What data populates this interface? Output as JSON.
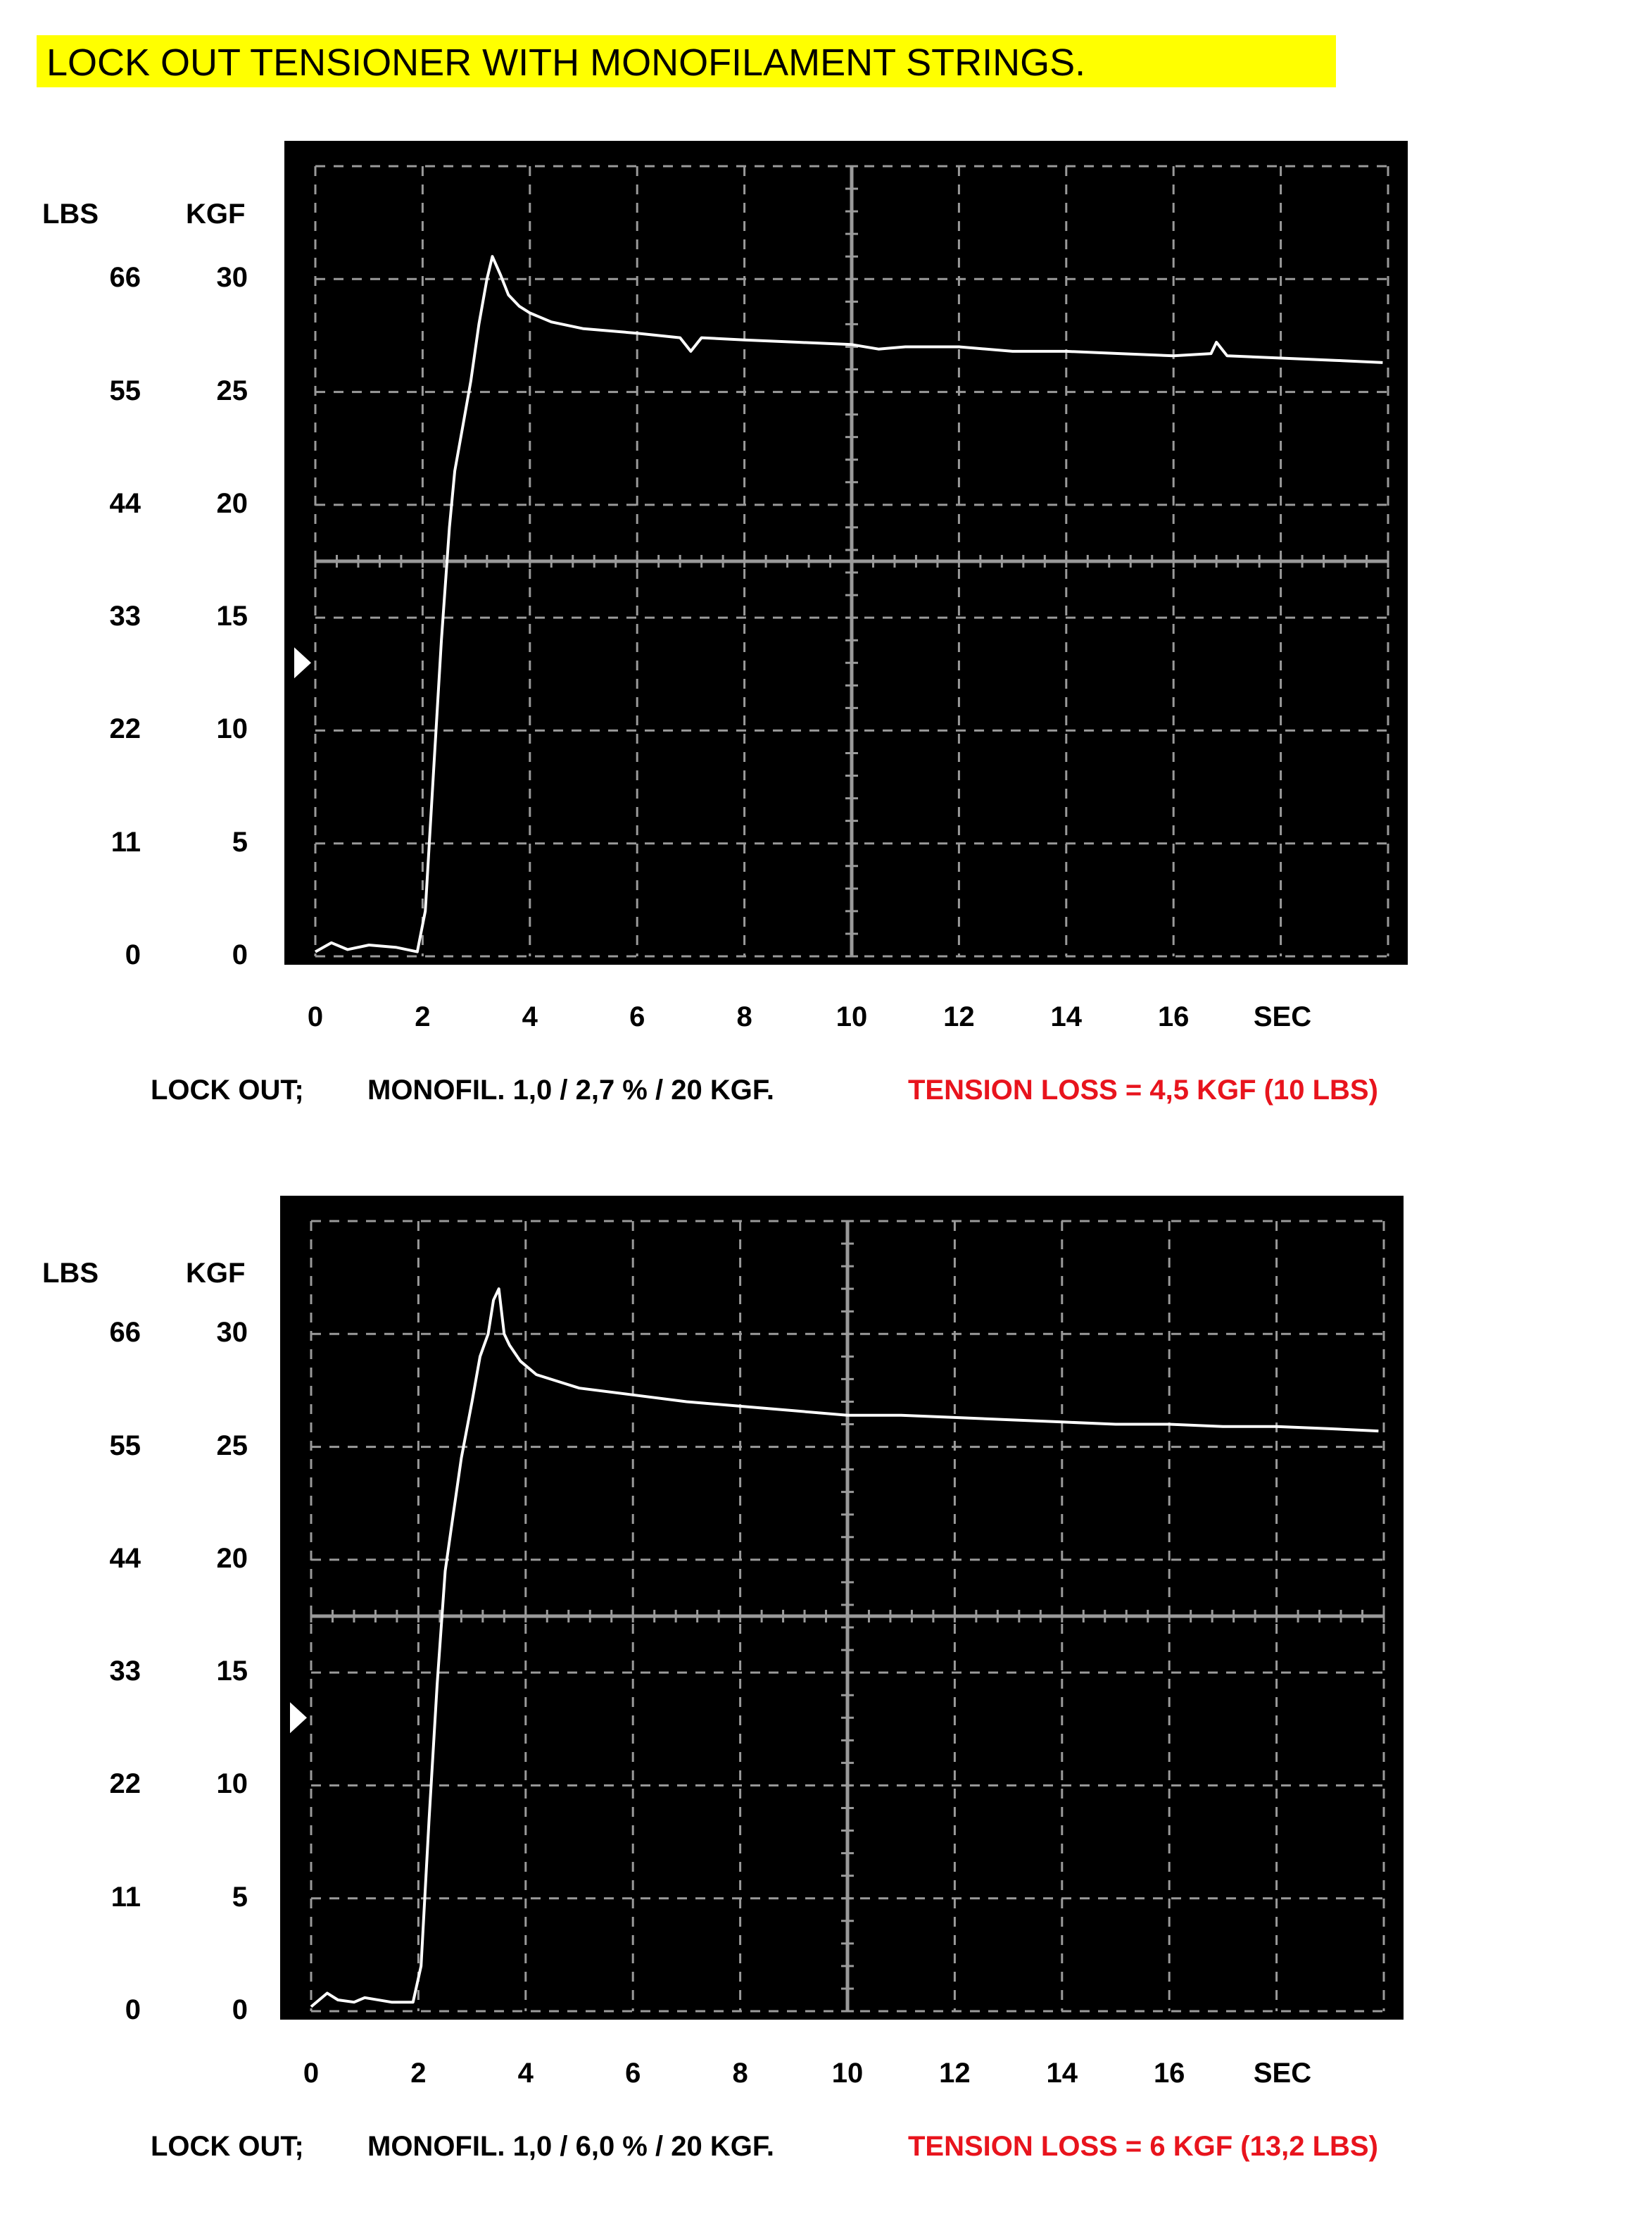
{
  "title": "LOCK OUT TENSIONER WITH MONOFILAMENT STRINGS.",
  "colors": {
    "banner": "#ffff00",
    "scope_background": "#000000",
    "grid": "#9a9a9a",
    "trace": "#ffffff",
    "loss_text": "#e8141d"
  },
  "chart_data": [
    {
      "type": "line",
      "axis_heads": {
        "lbs": "LBS",
        "kgf": "KGF",
        "x_unit": "SEC"
      },
      "y_ticks_kgf": [
        "30",
        "25",
        "20",
        "15",
        "10",
        "5",
        "0"
      ],
      "y_ticks_lbs": [
        "66",
        "55",
        "44",
        "33",
        "22",
        "11",
        "0"
      ],
      "x_ticks": [
        "0",
        "2",
        "4",
        "6",
        "8",
        "10",
        "12",
        "14",
        "16"
      ],
      "xlim": [
        0,
        20
      ],
      "ylim": [
        0,
        35
      ],
      "grid": true,
      "marker_kgf": 13,
      "caption": {
        "mode": "LOCK OUT;",
        "setting": "MONOFIL. 1,0 / 2,7 % / 20 KGF.",
        "loss": "TENSION LOSS = 4,5 KGF (10 LBS)"
      },
      "series": [
        {
          "x": [
            0,
            0.3,
            0.6,
            1.0,
            1.5,
            1.9,
            2.05,
            2.2,
            2.35,
            2.5,
            2.6,
            2.75,
            2.9,
            3.05,
            3.2,
            3.3,
            3.45,
            3.6,
            3.8,
            4.0,
            4.4,
            5.0,
            6.0,
            6.8,
            7.0,
            7.2,
            8.0,
            9.0,
            10.0,
            10.5,
            11.0,
            12.0,
            13.0,
            14.0,
            15.0,
            16.0,
            16.7,
            16.8,
            17.0,
            18.0,
            19.0,
            19.9
          ],
          "y": [
            0.2,
            0.6,
            0.3,
            0.5,
            0.4,
            0.2,
            2.0,
            8.0,
            14.0,
            19.0,
            21.5,
            23.5,
            25.5,
            28.0,
            30.0,
            31.0,
            30.2,
            29.3,
            28.8,
            28.5,
            28.1,
            27.8,
            27.6,
            27.4,
            26.8,
            27.4,
            27.3,
            27.2,
            27.1,
            26.9,
            27.0,
            27.0,
            26.8,
            26.8,
            26.7,
            26.6,
            26.7,
            27.2,
            26.6,
            26.5,
            26.4,
            26.3
          ]
        }
      ]
    },
    {
      "type": "line",
      "axis_heads": {
        "lbs": "LBS",
        "kgf": "KGF",
        "x_unit": "SEC"
      },
      "y_ticks_kgf": [
        "30",
        "25",
        "20",
        "15",
        "10",
        "5",
        "0"
      ],
      "y_ticks_lbs": [
        "66",
        "55",
        "44",
        "33",
        "22",
        "11",
        "0"
      ],
      "x_ticks": [
        "0",
        "2",
        "4",
        "6",
        "8",
        "10",
        "12",
        "14",
        "16"
      ],
      "xlim": [
        0,
        20
      ],
      "ylim": [
        0,
        35
      ],
      "grid": true,
      "marker_kgf": 13,
      "caption": {
        "mode": "LOCK OUT;",
        "setting": "MONOFIL. 1,0 / 6,0 % / 20 KGF.",
        "loss": "TENSION LOSS =  6 KGF (13,2 LBS)"
      },
      "series": [
        {
          "x": [
            0,
            0.3,
            0.5,
            0.8,
            1.0,
            1.5,
            1.9,
            2.05,
            2.2,
            2.35,
            2.5,
            2.65,
            2.8,
            3.0,
            3.15,
            3.3,
            3.4,
            3.5,
            3.6,
            3.7,
            3.9,
            4.2,
            4.6,
            5.0,
            6.0,
            7.0,
            8.0,
            9.0,
            10.0,
            11.0,
            12.0,
            13.0,
            14.0,
            15.0,
            16.0,
            17.0,
            18.0,
            19.0,
            19.9
          ],
          "y": [
            0.2,
            0.8,
            0.5,
            0.4,
            0.6,
            0.4,
            0.4,
            2.0,
            8.5,
            14.5,
            19.5,
            22.0,
            24.5,
            27.0,
            29.0,
            30.0,
            31.5,
            32.0,
            30.0,
            29.5,
            28.8,
            28.2,
            27.9,
            27.6,
            27.3,
            27.0,
            26.8,
            26.6,
            26.4,
            26.4,
            26.3,
            26.2,
            26.1,
            26.0,
            26.0,
            25.9,
            25.9,
            25.8,
            25.7
          ]
        }
      ]
    }
  ]
}
